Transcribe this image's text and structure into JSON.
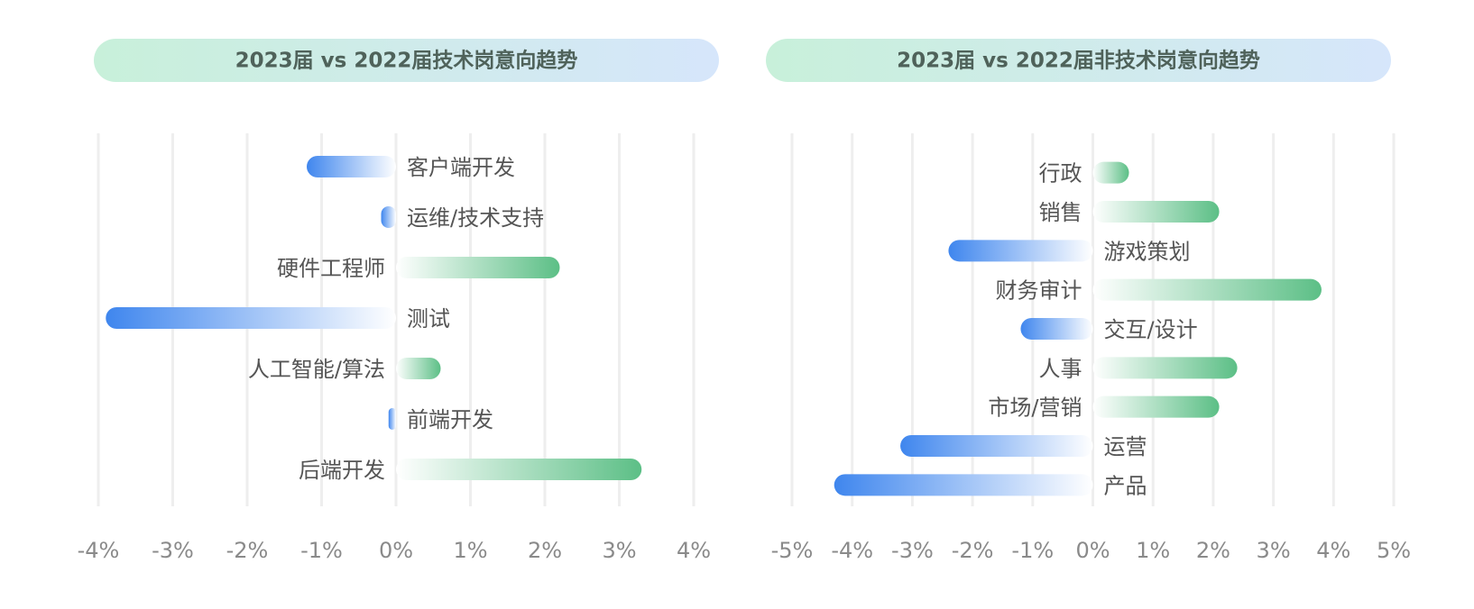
{
  "chart_data": [
    {
      "type": "bar",
      "title": "2023届 vs 2022届技术岗意向趋势",
      "categories": [
        "客户端开发",
        "运维/技术支持",
        "硬件工程师",
        "测试",
        "人工智能/算法",
        "前端开发",
        "后端开发"
      ],
      "values": [
        -1.2,
        -0.2,
        2.2,
        -3.9,
        0.6,
        -0.1,
        3.3
      ],
      "xlim": [
        -4,
        4
      ],
      "xticks": [
        {
          "value": -4,
          "label": "-4%"
        },
        {
          "value": -3,
          "label": "-3%"
        },
        {
          "value": -2,
          "label": "-2%"
        },
        {
          "value": -1,
          "label": "-1%"
        },
        {
          "value": 0,
          "label": "0%"
        },
        {
          "value": 1,
          "label": "1%"
        },
        {
          "value": 2,
          "label": "2%"
        },
        {
          "value": 3,
          "label": "3%"
        },
        {
          "value": 4,
          "label": "4%"
        }
      ],
      "grid": true,
      "colors": {
        "positive": "#5cbf86",
        "negative": "#3f86ee"
      }
    },
    {
      "type": "bar",
      "title": "2023届 vs 2022届非技术岗意向趋势",
      "categories": [
        "行政",
        "销售",
        "游戏策划",
        "财务审计",
        "交互/设计",
        "人事",
        "市场/营销",
        "运营",
        "产品"
      ],
      "values": [
        0.6,
        2.1,
        -2.4,
        3.8,
        -1.2,
        2.4,
        2.1,
        -3.2,
        -4.3
      ],
      "xlim": [
        -5,
        5
      ],
      "xticks": [
        {
          "value": -5,
          "label": "-5%"
        },
        {
          "value": -4,
          "label": "-4%"
        },
        {
          "value": -3,
          "label": "-3%"
        },
        {
          "value": -2,
          "label": "-2%"
        },
        {
          "value": -1,
          "label": "-1%"
        },
        {
          "value": 0,
          "label": "0%"
        },
        {
          "value": 1,
          "label": "1%"
        },
        {
          "value": 2,
          "label": "2%"
        },
        {
          "value": 3,
          "label": "3%"
        },
        {
          "value": 4,
          "label": "4%"
        },
        {
          "value": 5,
          "label": "5%"
        }
      ],
      "grid": true,
      "colors": {
        "positive": "#5cbf86",
        "negative": "#3f86ee"
      }
    }
  ]
}
